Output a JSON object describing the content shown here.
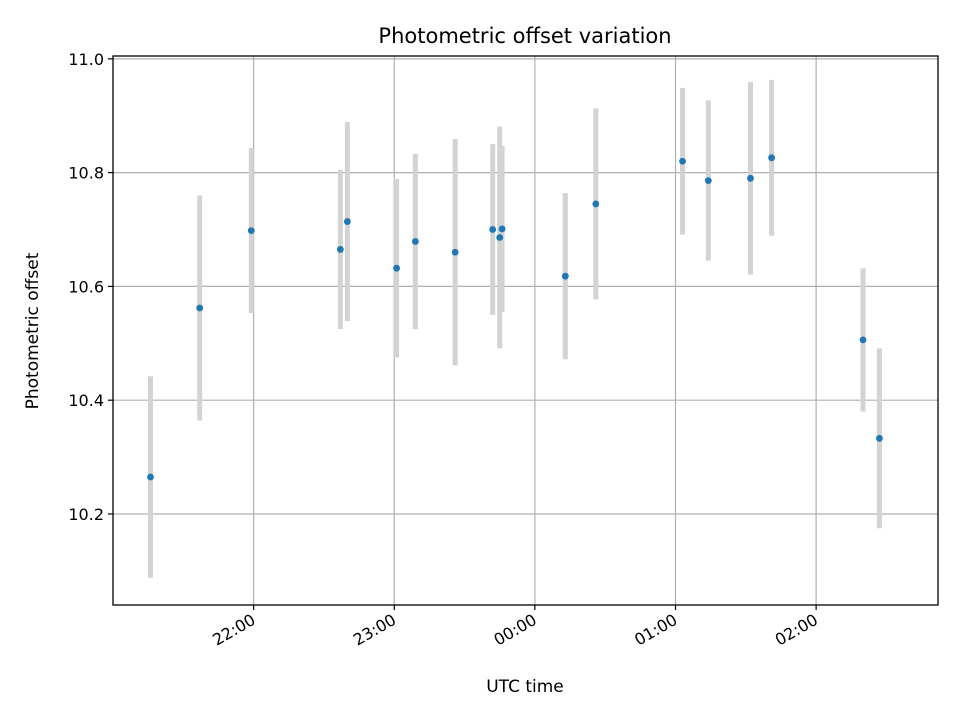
{
  "chart_data": {
    "type": "scatter",
    "title": "Photometric offset variation",
    "xlabel": "UTC time",
    "ylabel": "Photometric offset",
    "xlim": [
      "21:00",
      "02:52"
    ],
    "ylim": [
      10.04,
      11.005
    ],
    "grid": true,
    "legend": "none",
    "x_ticks": [
      "22:00",
      "23:00",
      "00:00",
      "01:00",
      "02:00"
    ],
    "y_ticks": [
      "10.2",
      "10.4",
      "10.6",
      "10.8",
      "11.0"
    ],
    "colors": {
      "points": "#1f77b4",
      "error_bars": "#d3d3d3"
    },
    "points": [
      {
        "x": "21:16",
        "y": 10.265,
        "err": 0.177
      },
      {
        "x": "21:37",
        "y": 10.562,
        "err": 0.198
      },
      {
        "x": "21:59",
        "y": 10.698,
        "err": 0.145
      },
      {
        "x": "22:37",
        "y": 10.665,
        "err": 0.14
      },
      {
        "x": "22:40",
        "y": 10.714,
        "err": 0.175
      },
      {
        "x": "23:01",
        "y": 10.632,
        "err": 0.157
      },
      {
        "x": "23:09",
        "y": 10.679,
        "err": 0.154
      },
      {
        "x": "23:26",
        "y": 10.66,
        "err": 0.199
      },
      {
        "x": "23:42",
        "y": 10.7,
        "err": 0.15
      },
      {
        "x": "23:45",
        "y": 10.686,
        "err": 0.195
      },
      {
        "x": "23:46",
        "y": 10.701,
        "err": 0.146
      },
      {
        "x": "00:13",
        "y": 10.618,
        "err": 0.146
      },
      {
        "x": "00:26",
        "y": 10.745,
        "err": 0.168
      },
      {
        "x": "01:03",
        "y": 10.82,
        "err": 0.129
      },
      {
        "x": "01:14",
        "y": 10.786,
        "err": 0.141
      },
      {
        "x": "01:32",
        "y": 10.79,
        "err": 0.169
      },
      {
        "x": "01:41",
        "y": 10.826,
        "err": 0.137
      },
      {
        "x": "02:20",
        "y": 10.506,
        "err": 0.126
      },
      {
        "x": "02:27",
        "y": 10.333,
        "err": 0.158
      }
    ]
  }
}
